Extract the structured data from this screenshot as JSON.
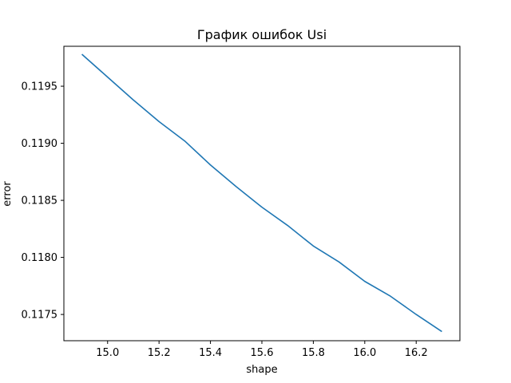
{
  "chart_data": {
    "type": "line",
    "title": "График ошибок Usi",
    "xlabel": "shape",
    "ylabel": "error",
    "xlim": [
      14.83,
      16.37
    ],
    "ylim": [
      0.11727,
      0.11985
    ],
    "x_ticks": [
      15.0,
      15.2,
      15.4,
      15.6,
      15.8,
      16.0,
      16.2
    ],
    "x_tick_labels": [
      "15.0",
      "15.2",
      "15.4",
      "15.6",
      "15.8",
      "16.0",
      "16.2"
    ],
    "y_ticks": [
      0.1175,
      0.118,
      0.1185,
      0.119,
      0.1195
    ],
    "y_tick_labels": [
      "0.1175",
      "0.1180",
      "0.1185",
      "0.1190",
      "0.1195"
    ],
    "grid": false,
    "series": [
      {
        "color": "#1f77b4",
        "x": [
          14.9,
          15.0,
          15.1,
          15.2,
          15.3,
          15.4,
          15.5,
          15.6,
          15.7,
          15.8,
          15.9,
          16.0,
          16.1,
          16.2,
          16.3
        ],
        "y": [
          0.11978,
          0.11958,
          0.11938,
          0.11919,
          0.11902,
          0.11881,
          0.11862,
          0.11844,
          0.11828,
          0.1181,
          0.11796,
          0.11779,
          0.11766,
          0.1175,
          0.11735
        ]
      }
    ]
  }
}
